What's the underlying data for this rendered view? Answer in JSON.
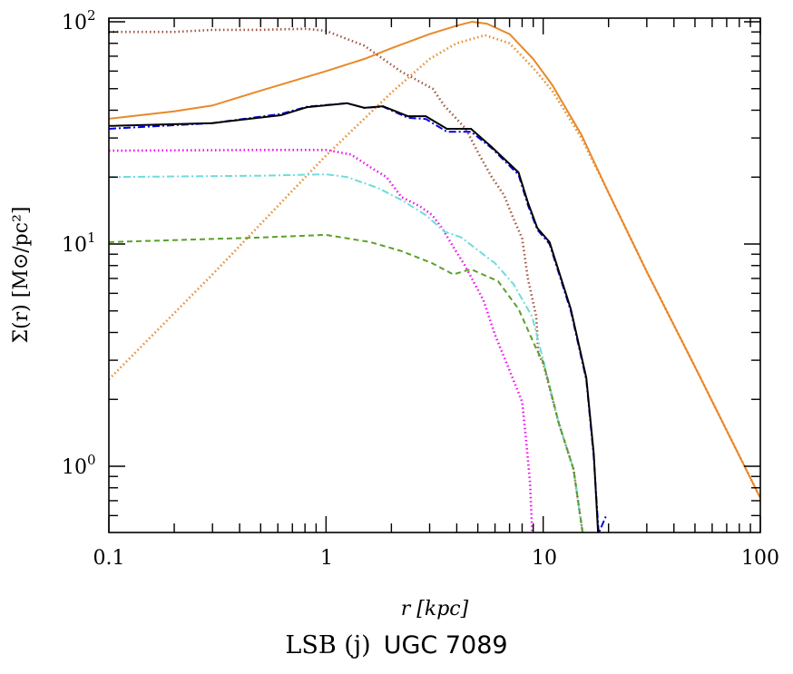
{
  "chart_data": {
    "type": "line",
    "xlabel": "r [kpc]",
    "ylabel": "Σ(r) [M⊙/pc²]",
    "xscale": "log",
    "yscale": "log",
    "xlim": [
      0.1,
      100
    ],
    "ylim": [
      0.5,
      104
    ],
    "x_tick_labels": [
      "0.1",
      "1",
      "10",
      "100"
    ],
    "x_ticks": [
      0.1,
      1,
      10,
      100
    ],
    "y_ticks": [
      1,
      10,
      100
    ],
    "y_tick_labels": [
      {
        "base": "10",
        "exp": "0"
      },
      {
        "base": "10",
        "exp": "1"
      },
      {
        "base": "10",
        "exp": "2"
      }
    ],
    "grid": false,
    "series": [
      {
        "color": "#e8892a",
        "style": "solid",
        "points": [
          [
            0.1,
            36.6
          ],
          [
            0.2,
            39.5
          ],
          [
            0.3,
            42
          ],
          [
            0.5,
            49
          ],
          [
            1,
            60
          ],
          [
            1.5,
            68
          ],
          [
            2,
            76
          ],
          [
            3,
            88
          ],
          [
            4,
            96
          ],
          [
            4.7,
            100
          ],
          [
            5.5,
            98
          ],
          [
            7,
            88
          ],
          [
            9,
            68
          ],
          [
            11,
            52
          ],
          [
            15,
            31
          ],
          [
            20,
            17
          ],
          [
            30,
            7.5
          ],
          [
            50,
            2.8
          ],
          [
            70,
            1.45
          ],
          [
            100,
            0.72
          ]
        ]
      },
      {
        "color": "#e8892a",
        "style": "dotted",
        "points": [
          [
            0.1,
            2.46
          ],
          [
            0.3,
            7.3
          ],
          [
            1,
            25
          ],
          [
            2,
            48
          ],
          [
            3,
            68
          ],
          [
            4,
            80
          ],
          [
            5.4,
            87
          ],
          [
            7,
            80
          ],
          [
            9,
            62
          ],
          [
            11,
            49
          ],
          [
            15,
            30
          ],
          [
            20,
            17
          ],
          [
            30,
            7.5
          ],
          [
            50,
            2.8
          ],
          [
            70,
            1.45
          ],
          [
            100,
            0.72
          ]
        ]
      },
      {
        "color": "#a0573f",
        "style": "dotted",
        "points": [
          [
            0.1,
            90
          ],
          [
            0.2,
            90
          ],
          [
            0.3,
            92
          ],
          [
            0.5,
            92
          ],
          [
            0.8,
            93
          ],
          [
            1,
            91
          ],
          [
            1.5,
            78
          ],
          [
            2.2,
            60
          ],
          [
            3.1,
            50
          ],
          [
            3.5,
            42
          ],
          [
            4.4,
            33
          ],
          [
            5.1,
            25
          ],
          [
            5.8,
            20
          ],
          [
            6.6,
            16.6
          ],
          [
            7.3,
            13
          ],
          [
            8,
            10.6
          ],
          [
            8.5,
            7
          ],
          [
            9.3,
            4.7
          ],
          [
            9.5,
            3.2
          ],
          [
            10,
            2.9
          ],
          [
            11.8,
            1.56
          ],
          [
            13.8,
            0.97
          ],
          [
            15.2,
            0.5
          ]
        ]
      },
      {
        "color": "#ee11ee",
        "style": "dotted",
        "points": [
          [
            0.1,
            26.3
          ],
          [
            0.5,
            26.5
          ],
          [
            1,
            26.5
          ],
          [
            1.3,
            25.3
          ],
          [
            1.62,
            22
          ],
          [
            1.9,
            20
          ],
          [
            2.22,
            16.3
          ],
          [
            2.7,
            14.8
          ],
          [
            3.08,
            13.5
          ],
          [
            3.4,
            11.9
          ],
          [
            3.96,
            9.3
          ],
          [
            4.36,
            8
          ],
          [
            5.3,
            5.6
          ],
          [
            6,
            3.9
          ],
          [
            7,
            2.7
          ],
          [
            8,
            1.95
          ],
          [
            8.4,
            1.23
          ],
          [
            8.7,
            0.84
          ],
          [
            8.9,
            0.5
          ]
        ]
      },
      {
        "color": "#6fdcdc",
        "style": "dashdot",
        "points": [
          [
            0.1,
            20
          ],
          [
            0.5,
            20.3
          ],
          [
            1,
            20.6
          ],
          [
            1.25,
            20
          ],
          [
            1.73,
            17.9
          ],
          [
            2.22,
            15.8
          ],
          [
            2.88,
            13.5
          ],
          [
            3.5,
            11.4
          ],
          [
            4.2,
            10.7
          ],
          [
            5.8,
            8.4
          ],
          [
            6,
            8.2
          ],
          [
            7.3,
            6.6
          ],
          [
            8.9,
            4.7
          ],
          [
            10,
            3
          ],
          [
            11.8,
            1.56
          ],
          [
            13.8,
            0.97
          ],
          [
            15.2,
            0.5
          ]
        ]
      },
      {
        "color": "#5aa02c",
        "style": "dashed",
        "points": [
          [
            0.1,
            10.2
          ],
          [
            0.5,
            10.7
          ],
          [
            1,
            11
          ],
          [
            1.6,
            10.2
          ],
          [
            2.22,
            9.3
          ],
          [
            3.08,
            8.2
          ],
          [
            3.85,
            7.3
          ],
          [
            4.65,
            7.7
          ],
          [
            6.2,
            6.8
          ],
          [
            7.7,
            5.1
          ],
          [
            9.4,
            3.3
          ],
          [
            10,
            2.95
          ],
          [
            11.8,
            1.56
          ],
          [
            13.8,
            0.97
          ],
          [
            15.2,
            0.5
          ]
        ]
      },
      {
        "color": "#0000ee",
        "style": "dashdot",
        "points": [
          [
            0.1,
            33
          ],
          [
            0.3,
            35
          ],
          [
            0.62,
            38.5
          ],
          [
            0.82,
            41.5
          ],
          [
            1.25,
            43
          ],
          [
            1.5,
            41
          ],
          [
            1.83,
            41.5
          ],
          [
            2.38,
            37
          ],
          [
            2.88,
            36.5
          ],
          [
            3.6,
            32
          ],
          [
            4.65,
            32
          ],
          [
            5.8,
            27
          ],
          [
            7.7,
            20.5
          ],
          [
            8.5,
            15
          ],
          [
            9.4,
            11.6
          ],
          [
            10.7,
            10
          ],
          [
            13.4,
            5
          ],
          [
            15.8,
            2.45
          ],
          [
            17.1,
            1.1
          ],
          [
            18,
            0.5
          ],
          [
            19.5,
            0.6
          ]
        ]
      },
      {
        "color": "#000000",
        "style": "solid",
        "points": [
          [
            0.1,
            34
          ],
          [
            0.3,
            35
          ],
          [
            0.62,
            38
          ],
          [
            0.82,
            41.3
          ],
          [
            1.25,
            43
          ],
          [
            1.5,
            41
          ],
          [
            1.83,
            41.7
          ],
          [
            2.38,
            37.6
          ],
          [
            2.88,
            37.6
          ],
          [
            3.6,
            33
          ],
          [
            4.65,
            33
          ],
          [
            5.8,
            27.3
          ],
          [
            7.7,
            21
          ],
          [
            8.5,
            15.4
          ],
          [
            9.4,
            11.8
          ],
          [
            10.7,
            10.2
          ],
          [
            13.4,
            5.1
          ],
          [
            15.8,
            2.5
          ],
          [
            17.1,
            1.14
          ],
          [
            17.9,
            0.5
          ]
        ]
      }
    ]
  },
  "caption": {
    "sample": "LSB (j)",
    "galaxy": "UGC 7089"
  }
}
